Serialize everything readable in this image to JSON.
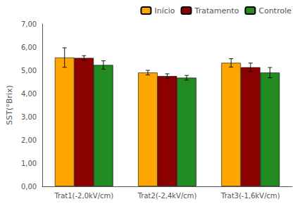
{
  "chart_data": {
    "type": "bar",
    "categories": [
      "Trat1(-2,0kV/cm)",
      "Trat2(-2,4kV/cm)",
      "Trat3(-1,6kV/cm)"
    ],
    "series": [
      {
        "name": "Início",
        "color": "#FFA500",
        "values": [
          5.55,
          4.9,
          5.32
        ],
        "errors": [
          0.42,
          0.1,
          0.18
        ]
      },
      {
        "name": "Tratamento",
        "color": "#8B0000",
        "values": [
          5.53,
          4.75,
          5.13
        ],
        "errors": [
          0.1,
          0.1,
          0.18
        ]
      },
      {
        "name": "Controle",
        "color": "#228B22",
        "values": [
          5.23,
          4.68,
          4.9
        ],
        "errors": [
          0.18,
          0.1,
          0.22
        ]
      }
    ],
    "ylabel": "SST(°Brix)",
    "ylim": [
      0.0,
      7.0
    ],
    "yticks": [
      {
        "value": 0.0,
        "label": "0,00"
      },
      {
        "value": 1.0,
        "label": "1,00"
      },
      {
        "value": 2.0,
        "label": "2,00"
      },
      {
        "value": 3.0,
        "label": "3,00"
      },
      {
        "value": 4.0,
        "label": "4,00"
      },
      {
        "value": 5.0,
        "label": "5,00"
      },
      {
        "value": 6.0,
        "label": "6,00"
      },
      {
        "value": 7.0,
        "label": "7,00"
      }
    ],
    "grid": false,
    "legend": "upper right"
  }
}
